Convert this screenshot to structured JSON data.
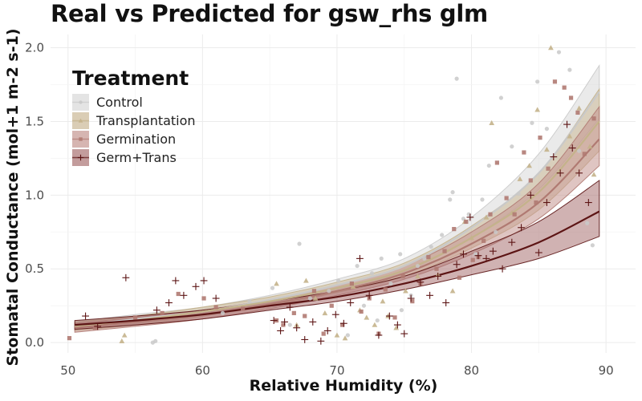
{
  "chart_data": {
    "type": "scatter",
    "title": "Real vs Predicted for gsw_rhs glm",
    "xlabel": "Relative Humidity (%)",
    "ylabel": "Stomatal Conductance (mol+1 m-2 s-1)",
    "xlim": [
      48.7,
      92.2
    ],
    "ylim": [
      -0.07,
      2.09
    ],
    "x_ticks": [
      50,
      60,
      70,
      80,
      90
    ],
    "y_ticks": [
      0.0,
      0.5,
      1.0,
      1.5,
      2.0
    ],
    "x_tick_labels": [
      "50",
      "60",
      "70",
      "80",
      "90"
    ],
    "y_tick_labels": [
      "0.0",
      "0.5",
      "1.0",
      "1.5",
      "2.0"
    ],
    "grid": true,
    "legend": {
      "title": "Treatment",
      "placement": "top-left"
    },
    "series": [
      {
        "name": "Control",
        "marker": "circle",
        "color": "#c9c9c9",
        "ribbon_color": "#d9d9d9",
        "fit": {
          "x": [
            50.5,
            55,
            60,
            65,
            70,
            75,
            80,
            85,
            89.5
          ],
          "y": [
            0.11,
            0.16,
            0.21,
            0.29,
            0.39,
            0.52,
            0.78,
            1.15,
            1.7
          ]
        },
        "fit_lower": [
          0.08,
          0.13,
          0.18,
          0.26,
          0.36,
          0.48,
          0.71,
          1.04,
          1.52
        ],
        "fit_upper": [
          0.14,
          0.19,
          0.24,
          0.32,
          0.43,
          0.57,
          0.85,
          1.28,
          1.88
        ],
        "points": [
          [
            56.3,
            0.0
          ],
          [
            56.5,
            0.01
          ],
          [
            61.5,
            0.2
          ],
          [
            63.5,
            0.28
          ],
          [
            65.2,
            0.37
          ],
          [
            66.5,
            0.12
          ],
          [
            67.2,
            0.67
          ],
          [
            68.0,
            0.3
          ],
          [
            69.4,
            0.35
          ],
          [
            70.1,
            0.42
          ],
          [
            71.5,
            0.52
          ],
          [
            72.0,
            0.25
          ],
          [
            72.6,
            0.47
          ],
          [
            73.3,
            0.57
          ],
          [
            74.0,
            0.4
          ],
          [
            74.7,
            0.6
          ],
          [
            75.5,
            0.32
          ],
          [
            76.0,
            0.52
          ],
          [
            76.5,
            0.57
          ],
          [
            77.0,
            0.65
          ],
          [
            77.8,
            0.73
          ],
          [
            78.4,
            0.97
          ],
          [
            78.6,
            1.02
          ],
          [
            78.9,
            1.79
          ],
          [
            79.4,
            0.84
          ],
          [
            79.8,
            0.87
          ],
          [
            80.3,
            0.6
          ],
          [
            80.8,
            0.97
          ],
          [
            81.3,
            1.2
          ],
          [
            81.8,
            0.75
          ],
          [
            82.2,
            1.66
          ],
          [
            83.0,
            1.33
          ],
          [
            83.5,
            1.01
          ],
          [
            84.5,
            1.49
          ],
          [
            84.9,
            1.77
          ],
          [
            85.6,
            1.45
          ],
          [
            86.5,
            1.97
          ],
          [
            87.3,
            1.85
          ],
          [
            88.0,
            1.3
          ],
          [
            88.6,
            0.81
          ],
          [
            89.0,
            0.66
          ],
          [
            74.8,
            0.22
          ],
          [
            70.8,
            0.05
          ],
          [
            73.0,
            0.15
          ]
        ]
      },
      {
        "name": "Transplantation",
        "marker": "triangle",
        "color": "#c4b38b",
        "ribbon_color": "#cbb895",
        "fit": {
          "x": [
            50.5,
            55,
            60,
            65,
            70,
            75,
            80,
            85,
            89.5
          ],
          "y": [
            0.11,
            0.15,
            0.21,
            0.28,
            0.37,
            0.49,
            0.71,
            1.02,
            1.5
          ]
        },
        "fit_lower": [
          0.08,
          0.12,
          0.18,
          0.25,
          0.34,
          0.45,
          0.64,
          0.9,
          1.3
        ],
        "fit_upper": [
          0.14,
          0.18,
          0.24,
          0.31,
          0.41,
          0.54,
          0.79,
          1.15,
          1.72
        ],
        "points": [
          [
            54.0,
            0.01
          ],
          [
            54.2,
            0.05
          ],
          [
            67.7,
            0.42
          ],
          [
            68.4,
            0.3
          ],
          [
            69.1,
            0.2
          ],
          [
            70.0,
            0.05
          ],
          [
            70.6,
            0.03
          ],
          [
            71.2,
            0.38
          ],
          [
            71.7,
            0.22
          ],
          [
            72.2,
            0.17
          ],
          [
            72.8,
            0.12
          ],
          [
            73.4,
            0.28
          ],
          [
            73.8,
            0.18
          ],
          [
            74.4,
            0.1
          ],
          [
            75.1,
            0.35
          ],
          [
            76.0,
            0.45
          ],
          [
            77.5,
            0.46
          ],
          [
            78.6,
            0.35
          ],
          [
            79.5,
            0.82
          ],
          [
            80.0,
            0.71
          ],
          [
            81.1,
            0.85
          ],
          [
            81.5,
            1.49
          ],
          [
            83.0,
            0.88
          ],
          [
            83.6,
            1.11
          ],
          [
            84.3,
            1.2
          ],
          [
            84.9,
            1.58
          ],
          [
            85.6,
            1.31
          ],
          [
            85.9,
            2.0
          ],
          [
            87.3,
            1.4
          ],
          [
            88.0,
            1.59
          ],
          [
            88.8,
            1.33
          ],
          [
            89.1,
            1.14
          ],
          [
            65.5,
            0.4
          ],
          [
            67.0,
            0.12
          ]
        ]
      },
      {
        "name": "Germination",
        "marker": "square",
        "color": "#b07a72",
        "ribbon_color": "#c49690",
        "fit": {
          "x": [
            50.5,
            55,
            60,
            65,
            70,
            75,
            80,
            85,
            89.5
          ],
          "y": [
            0.1,
            0.14,
            0.19,
            0.26,
            0.35,
            0.47,
            0.67,
            0.95,
            1.38
          ]
        },
        "fit_lower": [
          0.07,
          0.11,
          0.16,
          0.23,
          0.32,
          0.43,
          0.6,
          0.84,
          1.2
        ],
        "fit_upper": [
          0.13,
          0.17,
          0.22,
          0.29,
          0.39,
          0.52,
          0.75,
          1.08,
          1.6
        ],
        "points": [
          [
            50.1,
            0.03
          ],
          [
            52.0,
            0.1
          ],
          [
            55.0,
            0.17
          ],
          [
            57.0,
            0.2
          ],
          [
            58.2,
            0.33
          ],
          [
            60.1,
            0.3
          ],
          [
            61.0,
            0.24
          ],
          [
            63.0,
            0.23
          ],
          [
            65.5,
            0.15
          ],
          [
            66.0,
            0.12
          ],
          [
            66.8,
            0.2
          ],
          [
            67.6,
            0.18
          ],
          [
            68.3,
            0.35
          ],
          [
            69.0,
            0.06
          ],
          [
            69.6,
            0.25
          ],
          [
            70.4,
            0.12
          ],
          [
            71.1,
            0.4
          ],
          [
            71.8,
            0.21
          ],
          [
            72.4,
            0.3
          ],
          [
            73.1,
            0.06
          ],
          [
            73.6,
            0.36
          ],
          [
            74.3,
            0.17
          ],
          [
            74.9,
            0.45
          ],
          [
            75.6,
            0.28
          ],
          [
            76.2,
            0.4
          ],
          [
            76.8,
            0.58
          ],
          [
            77.4,
            0.5
          ],
          [
            78.0,
            0.62
          ],
          [
            78.7,
            0.77
          ],
          [
            79.1,
            0.44
          ],
          [
            79.6,
            0.82
          ],
          [
            80.1,
            0.56
          ],
          [
            80.5,
            0.58
          ],
          [
            80.9,
            0.69
          ],
          [
            81.4,
            0.87
          ],
          [
            81.9,
            1.22
          ],
          [
            82.6,
            0.98
          ],
          [
            83.2,
            0.87
          ],
          [
            83.9,
            1.29
          ],
          [
            84.4,
            1.1
          ],
          [
            85.1,
            1.39
          ],
          [
            85.7,
            1.18
          ],
          [
            86.2,
            1.77
          ],
          [
            86.9,
            1.73
          ],
          [
            87.4,
            1.66
          ],
          [
            87.9,
            1.56
          ],
          [
            88.4,
            1.28
          ],
          [
            89.1,
            1.52
          ],
          [
            84.8,
            0.95
          ]
        ]
      },
      {
        "name": "Germ+Trans",
        "marker": "plus",
        "color": "#5c1414",
        "ribbon_color": "#a97272",
        "fit": {
          "x": [
            50.5,
            55,
            60,
            65,
            70,
            75,
            80,
            85,
            89.5
          ],
          "y": [
            0.12,
            0.15,
            0.19,
            0.25,
            0.31,
            0.4,
            0.52,
            0.68,
            0.89
          ]
        },
        "fit_lower": [
          0.09,
          0.12,
          0.16,
          0.22,
          0.28,
          0.36,
          0.46,
          0.57,
          0.72
        ],
        "fit_upper": [
          0.15,
          0.18,
          0.22,
          0.28,
          0.35,
          0.45,
          0.62,
          0.82,
          1.1
        ],
        "points": [
          [
            51.3,
            0.18
          ],
          [
            52.2,
            0.11
          ],
          [
            54.3,
            0.44
          ],
          [
            56.6,
            0.22
          ],
          [
            57.5,
            0.27
          ],
          [
            58.0,
            0.42
          ],
          [
            58.6,
            0.32
          ],
          [
            59.5,
            0.38
          ],
          [
            60.1,
            0.42
          ],
          [
            61.0,
            0.3
          ],
          [
            65.3,
            0.15
          ],
          [
            65.8,
            0.08
          ],
          [
            66.1,
            0.14
          ],
          [
            66.5,
            0.24
          ],
          [
            67.0,
            0.1
          ],
          [
            67.6,
            0.02
          ],
          [
            68.2,
            0.14
          ],
          [
            68.8,
            0.01
          ],
          [
            69.3,
            0.08
          ],
          [
            69.9,
            0.19
          ],
          [
            70.5,
            0.13
          ],
          [
            71.0,
            0.27
          ],
          [
            71.7,
            0.57
          ],
          [
            72.4,
            0.32
          ],
          [
            73.1,
            0.05
          ],
          [
            73.9,
            0.18
          ],
          [
            74.5,
            0.12
          ],
          [
            75.0,
            0.06
          ],
          [
            75.5,
            0.3
          ],
          [
            76.2,
            0.41
          ],
          [
            76.9,
            0.32
          ],
          [
            77.5,
            0.45
          ],
          [
            78.1,
            0.27
          ],
          [
            78.9,
            0.53
          ],
          [
            79.4,
            0.6
          ],
          [
            79.9,
            0.85
          ],
          [
            80.5,
            0.59
          ],
          [
            81.1,
            0.57
          ],
          [
            81.6,
            0.62
          ],
          [
            82.3,
            0.5
          ],
          [
            83.0,
            0.68
          ],
          [
            83.7,
            0.78
          ],
          [
            84.4,
            1.0
          ],
          [
            85.0,
            0.61
          ],
          [
            85.6,
            0.95
          ],
          [
            86.1,
            1.26
          ],
          [
            86.6,
            1.15
          ],
          [
            87.1,
            1.48
          ],
          [
            87.5,
            1.32
          ],
          [
            88.0,
            1.15
          ],
          [
            88.7,
            0.95
          ]
        ]
      }
    ]
  }
}
